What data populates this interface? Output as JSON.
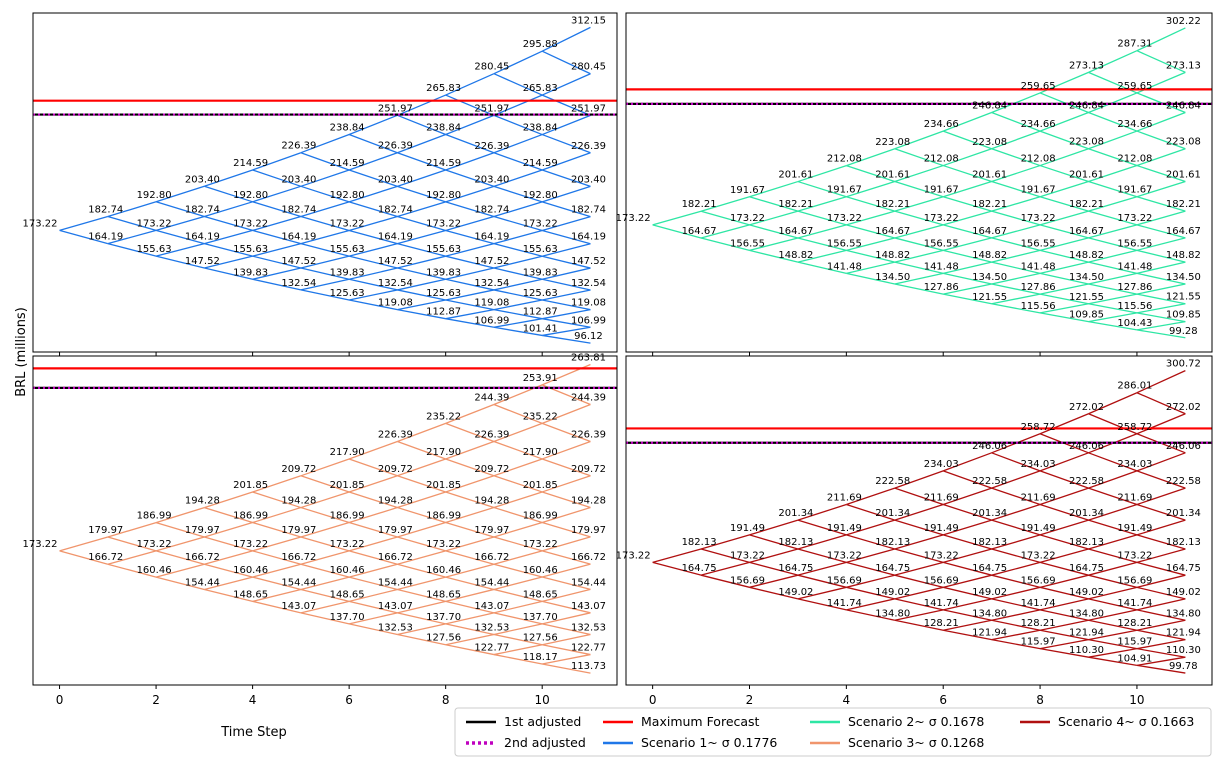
{
  "figure": {
    "ylabel": "BRL (millions)",
    "xlabel": "Time Step",
    "x_ticks": [
      "0",
      "2",
      "4",
      "6",
      "8",
      "10"
    ]
  },
  "legend": {
    "entries": [
      {
        "label": "1st adjusted",
        "color": "#000000",
        "style": "solid"
      },
      {
        "label": "2nd adjusted",
        "color": "#bf00bf",
        "style": "dotted"
      },
      {
        "label": "Maximum Forecast",
        "color": "#ff0000",
        "style": "solid"
      },
      {
        "label": "Scenario 1~ σ 0.1776",
        "color": "#1f77e8",
        "style": "solid"
      },
      {
        "label": "Scenario 2~ σ 0.1678",
        "color": "#2ee6a4",
        "style": "solid"
      },
      {
        "label": "Scenario 3~ σ 0.1268",
        "color": "#f0956c",
        "style": "solid"
      },
      {
        "label": "Scenario 4~ σ 0.1663",
        "color": "#b01010",
        "style": "solid"
      }
    ]
  },
  "chart_data": [
    {
      "type": "line",
      "subtype": "binomial-tree",
      "series_name": "Scenario 1~ σ 0.1776",
      "color": "#1f77e8",
      "start": 173.22,
      "up": 1.055,
      "down": 0.9478,
      "steps": 11,
      "max_forecast": 262.0,
      "first_adjusted": 252.5,
      "second_adjusted": 252.5,
      "ylim": [
        90,
        322
      ],
      "xlim": [
        -0.55,
        11.55
      ],
      "x_ticks": [
        0,
        2,
        4,
        6,
        8,
        10
      ],
      "data_labels_by_step": [
        [
          "173.22"
        ],
        [
          "182.74",
          "164.19"
        ],
        [
          "192.80",
          "173.22",
          "155.63"
        ],
        [
          "203.40",
          "182.74",
          "164.19",
          "147.52"
        ],
        [
          "214.59",
          "192.80",
          "173.22",
          "155.63",
          "139.83"
        ],
        [
          "226.39",
          "203.40",
          "182.74",
          "164.19",
          "147.52",
          "132.54"
        ],
        [
          "238.84",
          "214.59",
          "192.80",
          "173.22",
          "155.63",
          "139.83",
          "125.63"
        ],
        [
          "251.97",
          "226.39",
          "203.40",
          "182.74",
          "164.19",
          "147.52",
          "132.54",
          "119.08"
        ],
        [
          "265.83",
          "238.84",
          "214.59",
          "192.80",
          "173.22",
          "155.63",
          "139.83",
          "125.63",
          "112.87"
        ],
        [
          "280.45",
          "251.97",
          "226.39",
          "203.40",
          "182.74",
          "164.19",
          "147.52",
          "132.54",
          "119.08",
          "106.99"
        ],
        [
          "295.88",
          "265.83",
          "238.84",
          "214.59",
          "192.80",
          "173.22",
          "155.63",
          "139.83",
          "125.63",
          "112.87",
          "101.41"
        ],
        [
          "312.15",
          "280.45",
          "251.97",
          "226.39",
          "203.40",
          "182.74",
          "164.19",
          "147.52",
          "132.54",
          "119.08",
          "106.99",
          "96.12"
        ]
      ]
    },
    {
      "type": "line",
      "subtype": "binomial-tree",
      "series_name": "Scenario 2~ σ 0.1678",
      "color": "#2ee6a4",
      "start": 173.22,
      "up": 1.0519,
      "down": 0.9507,
      "steps": 11,
      "max_forecast": 262.0,
      "first_adjusted": 252.5,
      "second_adjusted": 252.5,
      "ylim": [
        90,
        312
      ],
      "xlim": [
        -0.55,
        11.55
      ],
      "x_ticks": [
        0,
        2,
        4,
        6,
        8,
        10
      ],
      "data_labels_by_step": [
        [
          "173.22"
        ],
        [
          "182.21",
          "164.67"
        ],
        [
          "191.67",
          "173.22",
          "156.55"
        ],
        [
          "201.61",
          "182.21",
          "164.67",
          "148.82"
        ],
        [
          "212.08",
          "191.67",
          "173.22",
          "156.55",
          "141.48"
        ],
        [
          "223.08",
          "201.61",
          "182.21",
          "164.67",
          "148.82",
          "134.50"
        ],
        [
          "234.66",
          "212.08",
          "191.67",
          "173.22",
          "156.55",
          "141.48",
          "127.86"
        ],
        [
          "246.84",
          "223.08",
          "201.61",
          "182.21",
          "164.67",
          "148.82",
          "134.50",
          "121.55"
        ],
        [
          "259.65",
          "234.66",
          "212.08",
          "191.67",
          "173.22",
          "156.55",
          "141.48",
          "127.86",
          "115.56"
        ],
        [
          "273.13",
          "246.84",
          "223.08",
          "201.61",
          "182.21",
          "164.67",
          "148.82",
          "134.50",
          "121.55",
          "109.85"
        ],
        [
          "287.31",
          "259.65",
          "234.66",
          "212.08",
          "191.67",
          "173.22",
          "156.55",
          "141.48",
          "127.86",
          "115.56",
          "104.43"
        ],
        [
          "302.22",
          "273.13",
          "246.84",
          "223.08",
          "201.61",
          "182.21",
          "164.67",
          "148.82",
          "134.50",
          "121.55",
          "109.85",
          "99.28"
        ]
      ]
    },
    {
      "type": "line",
      "subtype": "binomial-tree",
      "series_name": "Scenario 3~ σ 0.1268",
      "color": "#f0956c",
      "start": 173.22,
      "up": 1.039,
      "down": 0.9625,
      "steps": 11,
      "max_forecast": 262.0,
      "first_adjusted": 252.5,
      "second_adjusted": 252.5,
      "ylim": [
        108,
        268
      ],
      "xlim": [
        -0.55,
        11.55
      ],
      "x_ticks": [
        0,
        2,
        4,
        6,
        8,
        10
      ],
      "data_labels_by_step": [
        [
          "173.22"
        ],
        [
          "179.97",
          "166.72"
        ],
        [
          "186.99",
          "173.22",
          "160.46"
        ],
        [
          "194.28",
          "179.97",
          "166.72",
          "154.44"
        ],
        [
          "201.85",
          "186.99",
          "173.22",
          "160.46",
          "148.65"
        ],
        [
          "209.72",
          "194.28",
          "179.97",
          "166.72",
          "154.44",
          "143.07"
        ],
        [
          "217.90",
          "201.85",
          "186.99",
          "173.22",
          "160.46",
          "148.65",
          "137.70"
        ],
        [
          "226.39",
          "209.72",
          "194.28",
          "179.97",
          "166.72",
          "154.44",
          "143.07",
          "132.53"
        ],
        [
          "235.22",
          "217.90",
          "201.85",
          "186.99",
          "173.22",
          "160.46",
          "148.65",
          "137.70",
          "127.56"
        ],
        [
          "244.39",
          "226.39",
          "209.72",
          "194.28",
          "179.97",
          "166.72",
          "154.44",
          "143.07",
          "132.53",
          "122.77"
        ],
        [
          "253.91",
          "235.22",
          "217.90",
          "201.85",
          "186.99",
          "173.22",
          "160.46",
          "148.65",
          "137.70",
          "127.56",
          "118.17"
        ],
        [
          "263.81",
          "244.39",
          "226.39",
          "209.72",
          "194.28",
          "179.97",
          "166.72",
          "154.44",
          "143.07",
          "132.53",
          "122.77",
          "113.73"
        ]
      ]
    },
    {
      "type": "line",
      "subtype": "binomial-tree",
      "series_name": "Scenario 4~ σ 0.1663",
      "color": "#b01010",
      "start": 173.22,
      "up": 1.0513,
      "down": 0.9512,
      "steps": 11,
      "max_forecast": 262.0,
      "first_adjusted": 252.5,
      "second_adjusted": 252.5,
      "ylim": [
        92,
        310
      ],
      "xlim": [
        -0.55,
        11.55
      ],
      "x_ticks": [
        0,
        2,
        4,
        6,
        8,
        10
      ],
      "data_labels_by_step": [
        [
          "173.22"
        ],
        [
          "182.13",
          "164.75"
        ],
        [
          "191.49",
          "173.22",
          "156.69"
        ],
        [
          "201.34",
          "182.13",
          "164.75",
          "149.02"
        ],
        [
          "211.69",
          "191.49",
          "173.22",
          "156.69",
          "141.74"
        ],
        [
          "222.58",
          "201.34",
          "182.13",
          "164.75",
          "149.02",
          "134.80"
        ],
        [
          "234.03",
          "211.69",
          "191.49",
          "173.22",
          "156.69",
          "141.74",
          "128.21"
        ],
        [
          "246.06",
          "222.58",
          "201.34",
          "182.13",
          "164.75",
          "149.02",
          "134.80",
          "121.94"
        ],
        [
          "258.72",
          "234.03",
          "211.69",
          "191.49",
          "173.22",
          "156.69",
          "141.74",
          "128.21",
          "115.97"
        ],
        [
          "272.02",
          "246.06",
          "222.58",
          "201.34",
          "182.13",
          "164.75",
          "149.02",
          "134.80",
          "121.94",
          "110.30"
        ],
        [
          "286.01",
          "258.72",
          "234.03",
          "211.69",
          "191.49",
          "173.22",
          "156.69",
          "141.74",
          "128.21",
          "115.97",
          "104.91"
        ],
        [
          "300.72",
          "272.02",
          "246.06",
          "222.58",
          "201.34",
          "182.13",
          "164.75",
          "149.02",
          "134.80",
          "121.94",
          "110.30",
          "99.78"
        ]
      ]
    }
  ]
}
